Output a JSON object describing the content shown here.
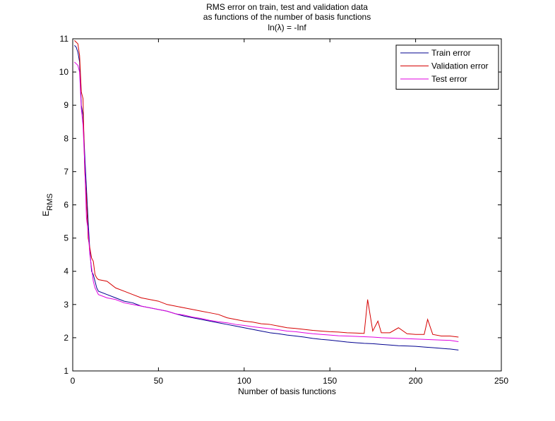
{
  "chart_data": {
    "type": "line",
    "title": [
      "RMS error on train, test and validation data",
      "as functions of the number of basis functions",
      "ln(λ) = -Inf"
    ],
    "xlabel": "Number of basis functions",
    "ylabel_main": "E",
    "ylabel_sub": "RMS",
    "xlim": [
      0,
      250
    ],
    "ylim": [
      1,
      11
    ],
    "xticks": [
      0,
      50,
      100,
      150,
      200,
      250
    ],
    "yticks": [
      1,
      2,
      3,
      4,
      5,
      6,
      7,
      8,
      9,
      10,
      11
    ],
    "grid": false,
    "legend_position": "top-right",
    "series": [
      {
        "name": "Train error",
        "color": "#00008f",
        "x": [
          1,
          2,
          3,
          4,
          5,
          6,
          7,
          8,
          9,
          10,
          11,
          12,
          13,
          14,
          15,
          20,
          25,
          30,
          35,
          40,
          45,
          50,
          55,
          60,
          65,
          70,
          75,
          80,
          85,
          90,
          95,
          100,
          105,
          110,
          115,
          120,
          125,
          130,
          135,
          140,
          145,
          150,
          155,
          160,
          165,
          170,
          175,
          180,
          185,
          190,
          195,
          200,
          205,
          210,
          215,
          220,
          225
        ],
        "y": [
          10.8,
          10.75,
          10.6,
          10.3,
          9.0,
          8.7,
          7.5,
          6.5,
          5.5,
          4.6,
          4.0,
          3.9,
          3.7,
          3.5,
          3.4,
          3.3,
          3.2,
          3.1,
          3.05,
          2.95,
          2.9,
          2.85,
          2.8,
          2.72,
          2.65,
          2.6,
          2.55,
          2.5,
          2.45,
          2.4,
          2.35,
          2.3,
          2.25,
          2.2,
          2.15,
          2.12,
          2.08,
          2.05,
          2.02,
          1.98,
          1.95,
          1.93,
          1.9,
          1.87,
          1.85,
          1.83,
          1.82,
          1.8,
          1.78,
          1.76,
          1.75,
          1.74,
          1.72,
          1.7,
          1.68,
          1.66,
          1.63
        ]
      },
      {
        "name": "Validation error",
        "color": "#d60000",
        "x": [
          1,
          2,
          3,
          4,
          5,
          6,
          7,
          8,
          9,
          10,
          11,
          12,
          13,
          14,
          15,
          20,
          25,
          30,
          35,
          40,
          45,
          50,
          55,
          60,
          65,
          70,
          75,
          80,
          85,
          90,
          95,
          100,
          105,
          110,
          115,
          120,
          125,
          130,
          135,
          140,
          145,
          150,
          155,
          160,
          165,
          170,
          172,
          175,
          178,
          180,
          185,
          190,
          195,
          200,
          205,
          207,
          210,
          215,
          220,
          225
        ],
        "y": [
          10.95,
          10.9,
          10.85,
          10.5,
          9.4,
          9.2,
          7.0,
          6.2,
          5.0,
          4.7,
          4.4,
          4.3,
          3.9,
          3.8,
          3.75,
          3.7,
          3.5,
          3.4,
          3.3,
          3.2,
          3.15,
          3.1,
          3.0,
          2.95,
          2.9,
          2.85,
          2.8,
          2.75,
          2.7,
          2.6,
          2.55,
          2.5,
          2.47,
          2.42,
          2.4,
          2.35,
          2.3,
          2.28,
          2.25,
          2.22,
          2.2,
          2.18,
          2.17,
          2.15,
          2.14,
          2.13,
          3.15,
          2.2,
          2.5,
          2.15,
          2.15,
          2.3,
          2.12,
          2.1,
          2.1,
          2.55,
          2.1,
          2.05,
          2.05,
          2.02
        ]
      },
      {
        "name": "Test error",
        "color": "#e000e0",
        "x": [
          1,
          2,
          3,
          4,
          5,
          6,
          7,
          8,
          9,
          10,
          11,
          12,
          13,
          14,
          15,
          20,
          25,
          30,
          35,
          40,
          45,
          50,
          55,
          60,
          65,
          70,
          75,
          80,
          85,
          90,
          95,
          100,
          105,
          110,
          115,
          120,
          125,
          130,
          135,
          140,
          145,
          150,
          155,
          160,
          165,
          170,
          175,
          180,
          185,
          190,
          195,
          200,
          205,
          210,
          215,
          220,
          225
        ],
        "y": [
          10.3,
          10.25,
          10.2,
          10.0,
          8.9,
          8.4,
          7.2,
          5.6,
          5.2,
          4.5,
          4.1,
          3.7,
          3.5,
          3.4,
          3.3,
          3.2,
          3.15,
          3.05,
          3.0,
          2.95,
          2.9,
          2.85,
          2.8,
          2.72,
          2.68,
          2.62,
          2.58,
          2.52,
          2.48,
          2.45,
          2.4,
          2.37,
          2.33,
          2.3,
          2.27,
          2.24,
          2.2,
          2.18,
          2.15,
          2.12,
          2.1,
          2.08,
          2.06,
          2.05,
          2.04,
          2.03,
          2.02,
          2.0,
          1.99,
          1.98,
          1.97,
          1.96,
          1.95,
          1.94,
          1.93,
          1.92,
          1.88
        ]
      }
    ]
  }
}
